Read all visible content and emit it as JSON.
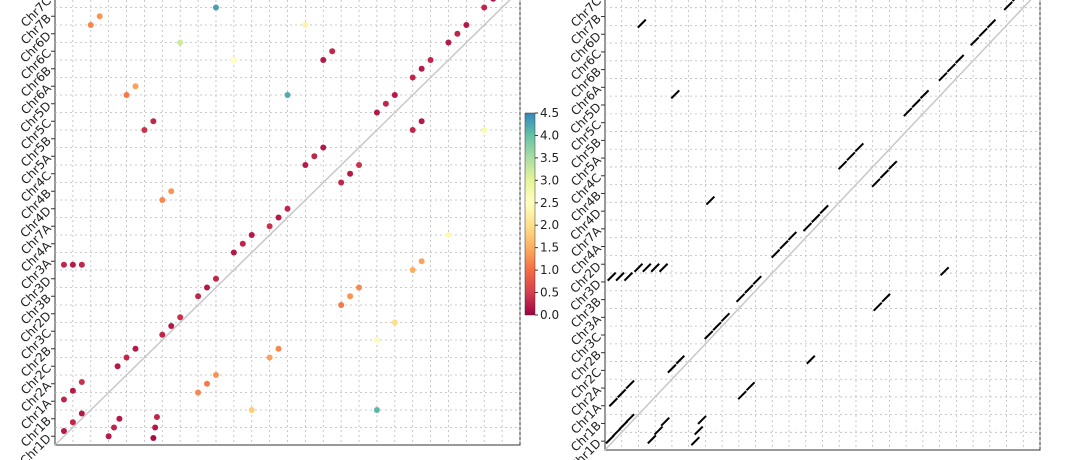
{
  "chart_data": [
    {
      "type": "scatter",
      "categories": [
        "Chr1D",
        "Chr1B",
        "Chr1A",
        "Chr2A",
        "Chr2C",
        "Chr2B",
        "Chr3C",
        "Chr2D",
        "Chr3B",
        "Chr3D",
        "Chr3A",
        "Chr4A",
        "Chr7A",
        "Chr4D",
        "Chr4B",
        "Chr4C",
        "Chr5A",
        "Chr5B",
        "Chr5C",
        "Chr5D",
        "Chr6A",
        "Chr6B",
        "Chr6C",
        "Chr6D",
        "Chr7B",
        "Chr7C"
      ],
      "xlim": [
        0,
        26
      ],
      "ylim": [
        0,
        26
      ],
      "grid": true,
      "colormap": "Spectral",
      "clim": [
        0,
        4.5
      ],
      "cticks": [
        0.0,
        0.5,
        1.0,
        1.5,
        2.0,
        2.5,
        3.0,
        3.5,
        4.0,
        4.5
      ],
      "x": [
        0.5,
        1.0,
        1.5,
        0.5,
        1.0,
        1.5,
        3.0,
        3.3,
        3.6,
        5.5,
        5.6,
        5.7,
        3.5,
        4.0,
        4.5,
        6.0,
        6.5,
        7.0,
        8.0,
        8.5,
        9.0,
        10.0,
        10.5,
        11.0,
        12.0,
        12.5,
        13.0,
        14.0,
        14.5,
        15.0,
        16.0,
        16.5,
        17.0,
        18.0,
        18.5,
        19.0,
        20.0,
        20.5,
        21.0,
        22.0,
        22.5,
        23.0,
        24.0,
        24.5,
        8.0,
        8.5,
        9.0,
        12.0,
        12.5,
        16.0,
        16.5,
        17.0,
        20.0,
        20.5,
        6.0,
        6.5,
        4.0,
        4.5,
        2.0,
        2.5,
        10,
        14,
        18,
        22,
        24,
        13,
        18,
        9,
        0.5,
        1.0,
        1.5,
        5,
        5.5,
        15,
        15.5,
        20,
        20.5,
        11,
        19,
        7
      ],
      "y": [
        0.8,
        1.3,
        1.8,
        2.6,
        3.1,
        3.6,
        0.5,
        1.0,
        1.5,
        0.4,
        1.0,
        1.6,
        4.5,
        5.0,
        5.5,
        6.3,
        6.8,
        7.3,
        8.5,
        9.0,
        9.5,
        11.0,
        11.5,
        12.0,
        12.5,
        13.0,
        13.5,
        16.0,
        16.5,
        17.0,
        15.0,
        15.5,
        16.0,
        19.0,
        19.5,
        20.0,
        21.0,
        21.5,
        22.0,
        23.0,
        23.5,
        24.0,
        25.0,
        25.5,
        3.0,
        3.5,
        4.0,
        5.0,
        5.5,
        8.0,
        8.5,
        9.0,
        10.0,
        10.5,
        14.0,
        14.5,
        20.0,
        20.5,
        24.0,
        24.5,
        22,
        24,
        6,
        12,
        18,
        20,
        2,
        25,
        10.3,
        10.3,
        10.3,
        18,
        18.5,
        22,
        22.5,
        18,
        18.5,
        2,
        7,
        23
      ],
      "values": [
        0.2,
        0.3,
        0.2,
        0.3,
        0.2,
        0.4,
        0.2,
        0.3,
        0.2,
        0.1,
        0.2,
        0.3,
        0.2,
        0.3,
        0.2,
        0.3,
        0.2,
        0.4,
        0.3,
        0.2,
        0.3,
        0.2,
        0.3,
        0.2,
        0.4,
        0.2,
        0.3,
        0.2,
        0.3,
        0.2,
        0.3,
        0.2,
        0.4,
        0.2,
        0.3,
        0.2,
        0.3,
        0.2,
        0.3,
        0.2,
        0.3,
        0.2,
        0.3,
        0.2,
        1.2,
        1.1,
        1.3,
        1.4,
        1.2,
        1.1,
        1.3,
        1.2,
        1.5,
        1.4,
        1.2,
        1.3,
        1.1,
        1.4,
        1.2,
        1.3,
        2.5,
        2.3,
        2.6,
        2.4,
        2.7,
        4.2,
        4.1,
        4.3,
        0.3,
        0.2,
        0.3,
        0.4,
        0.3,
        0.2,
        0.3,
        0.3,
        0.2,
        1.8,
        2.0,
        3.2
      ]
    },
    {
      "type": "dash",
      "categories": [
        "Chr1D",
        "Chr1B",
        "Chr1A",
        "Chr2A",
        "Chr2C",
        "Chr2B",
        "Chr3C",
        "Chr3A",
        "Chr3B",
        "Chr3D",
        "Chr2D",
        "Chr4A",
        "Chr7A",
        "Chr4D",
        "Chr4B",
        "Chr4C",
        "Chr5A",
        "Chr5B",
        "Chr5C",
        "Chr5D",
        "Chr6A",
        "Chr6B",
        "Chr6C",
        "Chr6D",
        "Chr7B",
        "Chr7C"
      ],
      "xlim": [
        0,
        26
      ],
      "ylim": [
        0,
        26
      ],
      "grid": true,
      "color": "#000000",
      "x": [
        0.3,
        0.7,
        1.1,
        1.5,
        0.5,
        1.0,
        1.5,
        2.8,
        3.2,
        3.6,
        5.4,
        5.6,
        5.8,
        2.0,
        2.5,
        3.0,
        3.5,
        4.0,
        4.5,
        6.2,
        6.7,
        7.2,
        8.1,
        8.6,
        9.1,
        10.2,
        10.7,
        11.2,
        12.1,
        12.6,
        13.1,
        14.2,
        14.7,
        15.2,
        16.2,
        16.7,
        17.2,
        18.1,
        18.6,
        19.1,
        20.2,
        20.7,
        21.2,
        22.1,
        22.6,
        23.1,
        24.1,
        24.6,
        8.2,
        8.7,
        12.3,
        16.3,
        16.8,
        20.3,
        6.3,
        4.2,
        2.2,
        0.4,
        0.9,
        1.4
      ],
      "y": [
        0.6,
        1.0,
        1.4,
        1.8,
        2.7,
        3.2,
        3.7,
        0.6,
        1.1,
        1.6,
        0.5,
        1.1,
        1.7,
        10.3,
        10.3,
        10.3,
        10.3,
        4.6,
        5.1,
        6.5,
        7.0,
        7.5,
        8.6,
        9.1,
        9.6,
        11.1,
        11.6,
        12.1,
        12.6,
        13.1,
        13.6,
        16.1,
        16.6,
        17.1,
        15.1,
        15.6,
        16.1,
        19.1,
        19.6,
        20.1,
        21.1,
        21.6,
        22.1,
        23.1,
        23.6,
        24.1,
        25.1,
        25.6,
        3.1,
        3.6,
        5.1,
        8.1,
        8.6,
        10.1,
        14.1,
        20.1,
        24.1,
        9.8,
        9.8,
        9.8
      ]
    }
  ]
}
